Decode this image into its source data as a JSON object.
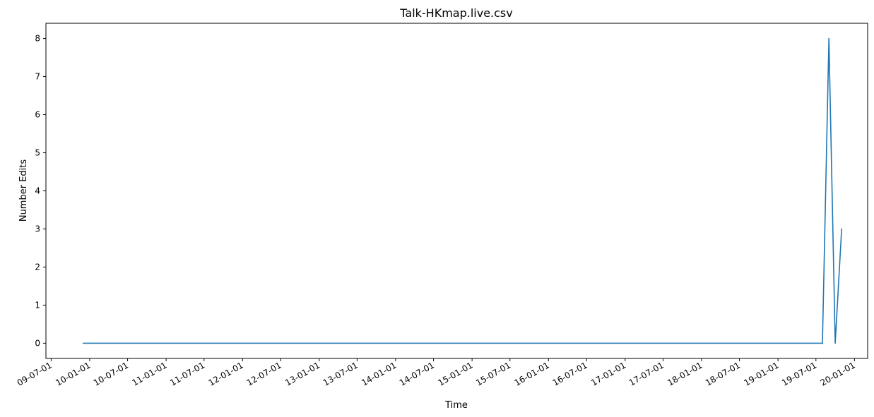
{
  "chart_data": {
    "type": "line",
    "title": "Talk-HKmap.live.csv",
    "xlabel": "Time",
    "ylabel": "Number Edits",
    "xlim": [
      "2009-06-06",
      "2020-03-04"
    ],
    "ylim": [
      -0.4,
      8.4
    ],
    "y_ticks": [
      0,
      1,
      2,
      3,
      4,
      5,
      6,
      7,
      8
    ],
    "x_ticks": [
      {
        "date": "2009-07-01",
        "label": "09-07-01"
      },
      {
        "date": "2010-01-01",
        "label": "10-01-01"
      },
      {
        "date": "2010-07-01",
        "label": "10-07-01"
      },
      {
        "date": "2011-01-01",
        "label": "11-01-01"
      },
      {
        "date": "2011-07-01",
        "label": "11-07-01"
      },
      {
        "date": "2012-01-01",
        "label": "12-01-01"
      },
      {
        "date": "2012-07-01",
        "label": "12-07-01"
      },
      {
        "date": "2013-01-01",
        "label": "13-01-01"
      },
      {
        "date": "2013-07-01",
        "label": "13-07-01"
      },
      {
        "date": "2014-01-01",
        "label": "14-01-01"
      },
      {
        "date": "2014-07-01",
        "label": "14-07-01"
      },
      {
        "date": "2015-01-01",
        "label": "15-01-01"
      },
      {
        "date": "2015-07-01",
        "label": "15-07-01"
      },
      {
        "date": "2016-01-01",
        "label": "16-01-01"
      },
      {
        "date": "2016-07-01",
        "label": "16-07-01"
      },
      {
        "date": "2017-01-01",
        "label": "17-01-01"
      },
      {
        "date": "2017-07-01",
        "label": "17-07-01"
      },
      {
        "date": "2018-01-01",
        "label": "18-01-01"
      },
      {
        "date": "2018-07-01",
        "label": "18-07-01"
      },
      {
        "date": "2019-01-01",
        "label": "19-01-01"
      },
      {
        "date": "2019-07-01",
        "label": "19-07-01"
      },
      {
        "date": "2020-01-01",
        "label": "20-01-01"
      }
    ],
    "series": [
      {
        "color": "#1f77b4",
        "points": [
          {
            "x": "2009-12-01",
            "y": 0
          },
          {
            "x": "2019-08-01",
            "y": 0
          },
          {
            "x": "2019-09-01",
            "y": 8
          },
          {
            "x": "2019-10-01",
            "y": 0
          },
          {
            "x": "2019-11-01",
            "y": 3
          }
        ]
      }
    ],
    "grid": false,
    "legend": "none"
  }
}
